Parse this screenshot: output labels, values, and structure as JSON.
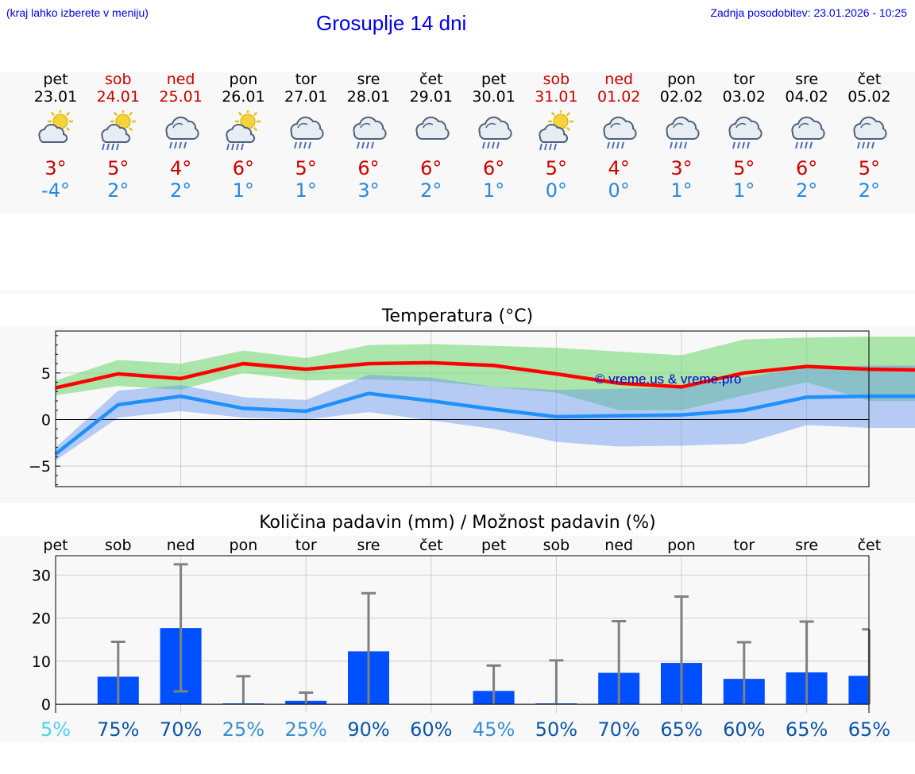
{
  "header": {
    "hint": "(kraj lahko izberete v meniju)",
    "title": "Grosuplje 14 dni",
    "updated": "Zadnja posodobitev: 23.01.2026 - 10:25"
  },
  "days": [
    {
      "name": "pet",
      "date": "23.01",
      "weekend": false,
      "icon": "sun-cloud-icon",
      "tmax": "3°",
      "tmin": "-4°"
    },
    {
      "name": "sob",
      "date": "24.01",
      "weekend": true,
      "icon": "sun-cloud-rain-icon",
      "tmax": "5°",
      "tmin": "2°"
    },
    {
      "name": "ned",
      "date": "25.01",
      "weekend": true,
      "icon": "cloud-rain-icon",
      "tmax": "4°",
      "tmin": "2°"
    },
    {
      "name": "pon",
      "date": "26.01",
      "weekend": false,
      "icon": "sun-cloud-rain-icon",
      "tmax": "6°",
      "tmin": "1°"
    },
    {
      "name": "tor",
      "date": "27.01",
      "weekend": false,
      "icon": "cloud-rain-icon",
      "tmax": "5°",
      "tmin": "1°"
    },
    {
      "name": "sre",
      "date": "28.01",
      "weekend": false,
      "icon": "cloud-rain-icon",
      "tmax": "6°",
      "tmin": "3°"
    },
    {
      "name": "čet",
      "date": "29.01",
      "weekend": false,
      "icon": "cloud-icon",
      "tmax": "6°",
      "tmin": "2°"
    },
    {
      "name": "pet",
      "date": "30.01",
      "weekend": false,
      "icon": "cloud-rain-icon",
      "tmax": "6°",
      "tmin": "1°"
    },
    {
      "name": "sob",
      "date": "31.01",
      "weekend": true,
      "icon": "sun-cloud-rain-icon",
      "tmax": "5°",
      "tmin": "0°"
    },
    {
      "name": "ned",
      "date": "01.02",
      "weekend": true,
      "icon": "cloud-rain-icon",
      "tmax": "4°",
      "tmin": "0°"
    },
    {
      "name": "pon",
      "date": "02.02",
      "weekend": false,
      "icon": "cloud-rain-icon",
      "tmax": "3°",
      "tmin": "1°"
    },
    {
      "name": "tor",
      "date": "03.02",
      "weekend": false,
      "icon": "cloud-rain-icon",
      "tmax": "5°",
      "tmin": "1°"
    },
    {
      "name": "sre",
      "date": "04.02",
      "weekend": false,
      "icon": "cloud-rain-icon",
      "tmax": "6°",
      "tmin": "2°"
    },
    {
      "name": "čet",
      "date": "05.02",
      "weekend": false,
      "icon": "cloud-rain-icon",
      "tmax": "5°",
      "tmin": "2°"
    }
  ],
  "colors": {
    "max": "#ff0000",
    "min": "#1e90ff",
    "maxBand": "#7fdc7f",
    "minBand": "#6495ed",
    "bar": "#0050ff",
    "whisker": "#808080"
  },
  "chart_data": [
    {
      "type": "line",
      "title": "Temperatura (°C)",
      "watermark": "© vreme.us & vreme.pro",
      "ylim": [
        -7.2,
        9.5
      ],
      "yticks": [
        -5,
        0,
        5
      ],
      "ytick_labels": [
        "−5",
        "0",
        "5"
      ],
      "x": [
        0,
        1,
        2,
        3,
        4,
        5,
        6,
        7,
        8,
        9,
        10,
        11,
        12,
        13,
        14
      ],
      "series": [
        {
          "name": "max",
          "values": [
            3.4,
            4.9,
            4.4,
            6.0,
            5.4,
            6.0,
            6.1,
            5.8,
            4.9,
            3.9,
            3.5,
            5.0,
            5.7,
            5.4,
            5.3
          ]
        },
        {
          "name": "min",
          "values": [
            -3.7,
            1.6,
            2.5,
            1.2,
            0.9,
            2.8,
            2.0,
            1.1,
            0.3,
            0.4,
            0.5,
            1.0,
            2.4,
            2.5,
            2.5
          ]
        }
      ],
      "bands": [
        {
          "name": "max-range",
          "low": [
            2.6,
            3.6,
            3.2,
            5.0,
            4.2,
            4.3,
            4.1,
            3.5,
            2.9,
            1.0,
            1.0,
            2.6,
            4.0,
            2.0,
            2.0
          ],
          "high": [
            4.2,
            6.4,
            6.0,
            7.4,
            6.6,
            8.0,
            8.1,
            7.9,
            7.7,
            7.3,
            6.9,
            8.6,
            8.8,
            8.9,
            8.9
          ]
        },
        {
          "name": "min-range",
          "low": [
            -4.4,
            0.2,
            0.9,
            0.2,
            0.0,
            0.8,
            -0.1,
            -1.0,
            -2.4,
            -2.9,
            -2.8,
            -2.6,
            -0.6,
            -0.9,
            -0.9
          ],
          "high": [
            -3.0,
            3.1,
            3.7,
            2.4,
            2.1,
            4.8,
            4.5,
            3.5,
            3.2,
            3.3,
            3.4,
            4.5,
            5.6,
            5.8,
            5.8
          ]
        }
      ]
    },
    {
      "type": "bar",
      "title": "Količina padavin (mm) / Možnost padavin (%)",
      "categories": [
        "pet",
        "sob",
        "ned",
        "pon",
        "tor",
        "sre",
        "čet",
        "pet",
        "sob",
        "ned",
        "pon",
        "tor",
        "sre",
        "čet"
      ],
      "ylim": [
        -2,
        34.5
      ],
      "yticks": [
        0,
        10,
        20,
        30
      ],
      "ytick_labels": [
        "0",
        "10",
        "20",
        "30"
      ],
      "values": [
        0,
        6.4,
        17.7,
        0.2,
        0.8,
        12.3,
        0,
        3.1,
        0.2,
        7.3,
        9.6,
        5.9,
        7.4,
        6.6
      ],
      "error_low": [
        0,
        0,
        3.0,
        0,
        0,
        0,
        0,
        0,
        0,
        0,
        0,
        0,
        0,
        0
      ],
      "error_high": [
        0,
        14.5,
        32.5,
        6.5,
        2.7,
        25.8,
        0,
        9.0,
        10.2,
        19.3,
        25.0,
        14.4,
        19.2,
        17.4
      ],
      "probability": [
        "5%",
        "75%",
        "70%",
        "25%",
        "25%",
        "90%",
        "60%",
        "45%",
        "50%",
        "70%",
        "65%",
        "60%",
        "65%",
        "65%"
      ],
      "probability_values": [
        5,
        75,
        70,
        25,
        25,
        90,
        60,
        45,
        50,
        70,
        65,
        60,
        65,
        65
      ]
    }
  ]
}
